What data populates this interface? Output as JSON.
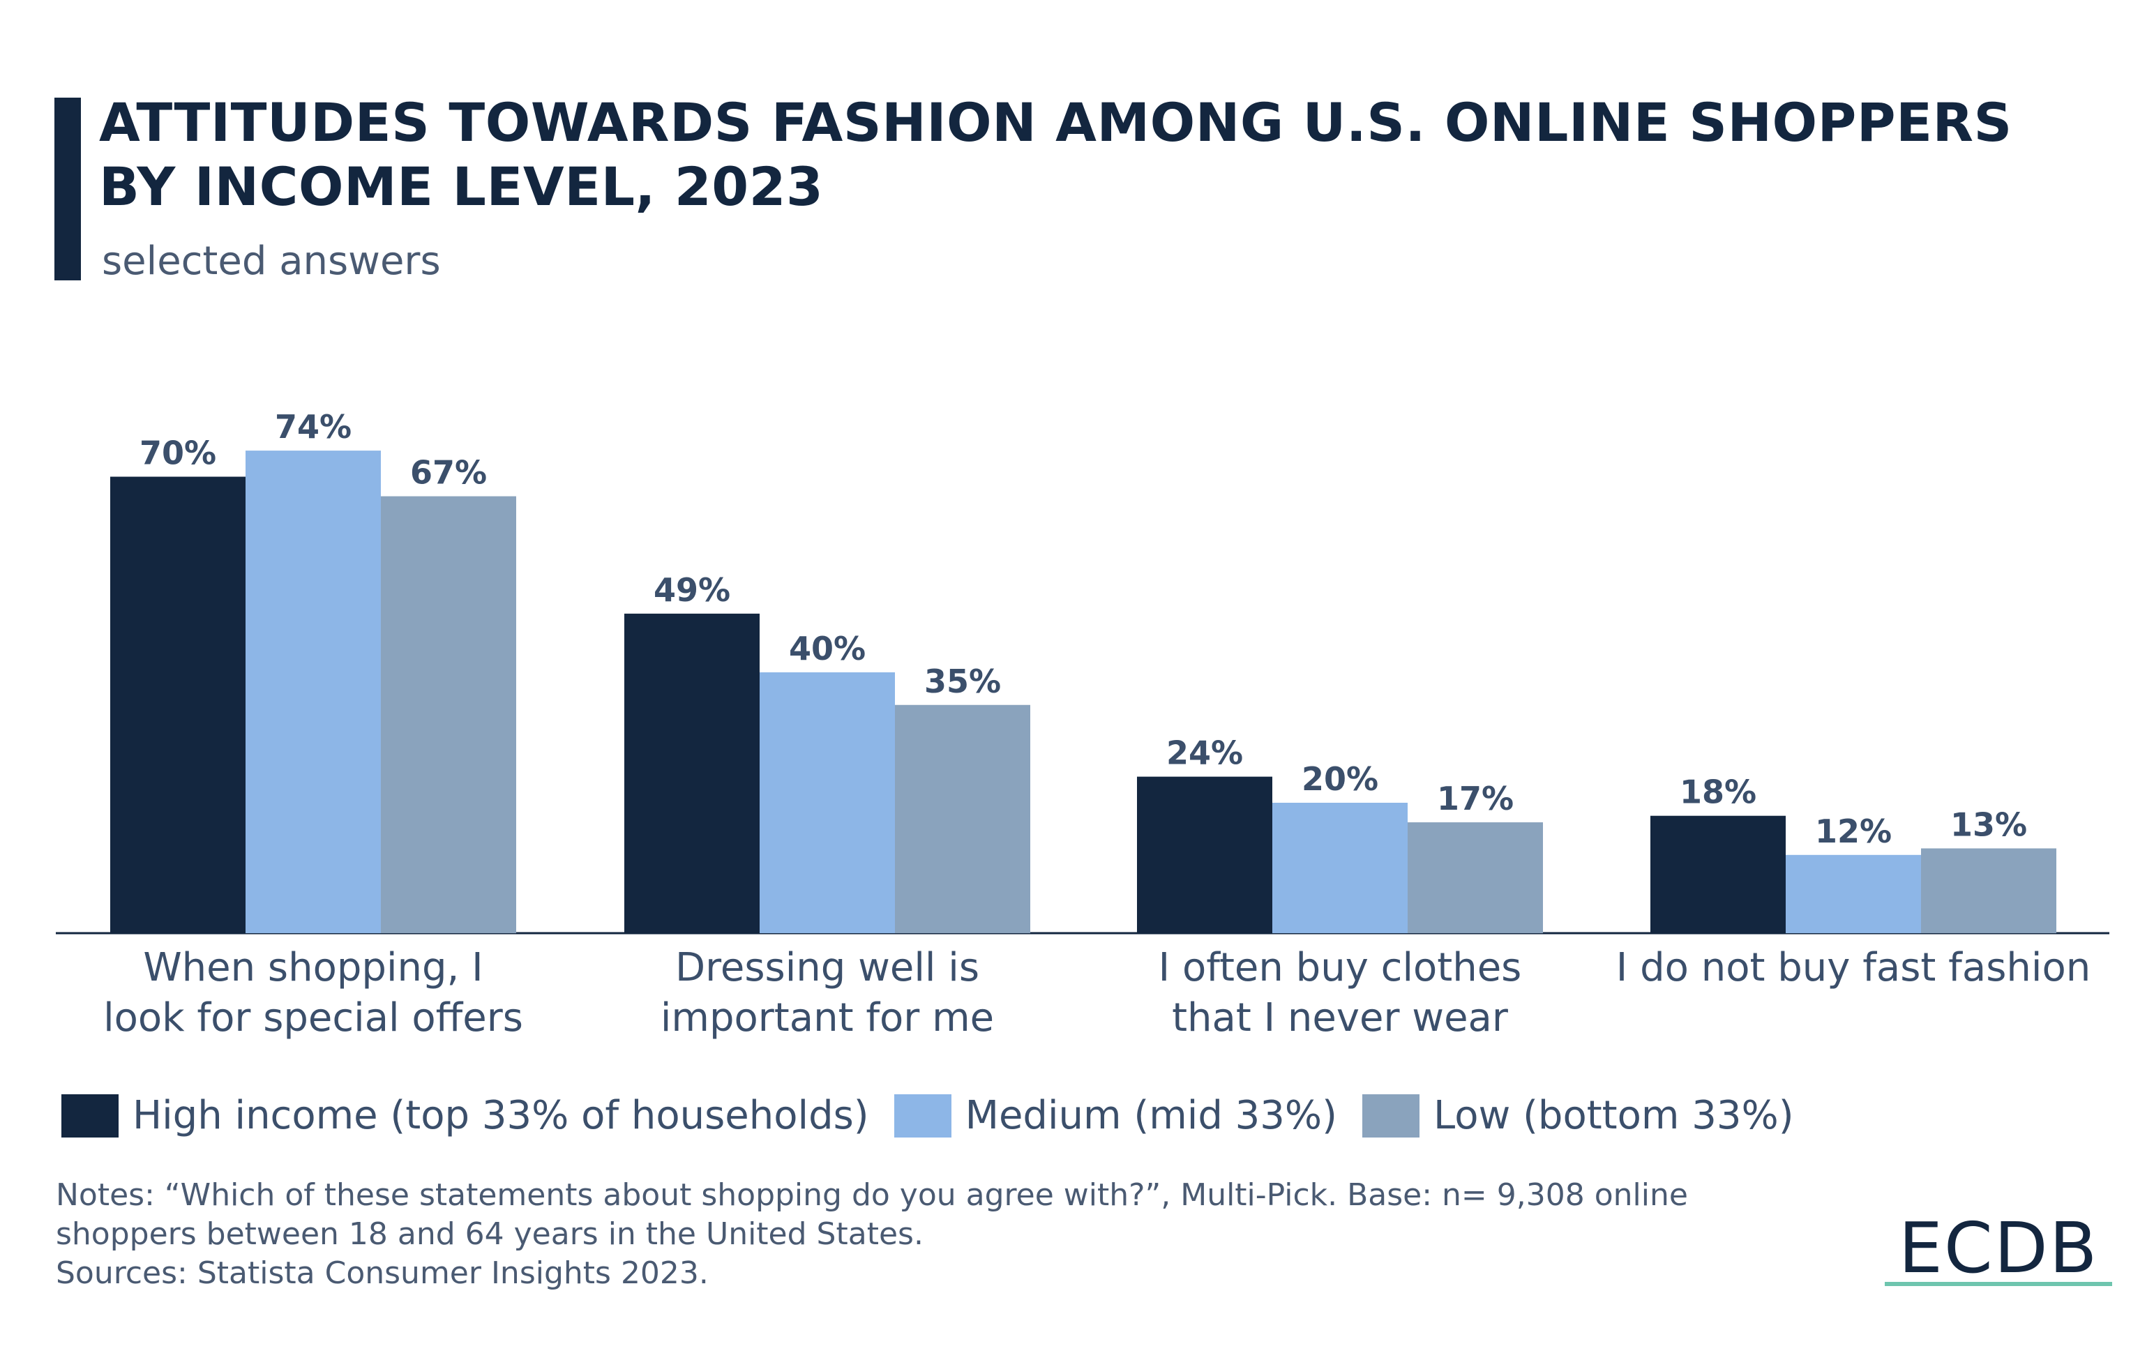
{
  "header": {
    "title_line1": "ATTITUDES TOWARDS FASHION AMONG U.S. ONLINE SHOPPERS",
    "title_line2": "BY INCOME LEVEL, 2023",
    "subtitle": "selected answers"
  },
  "chart_data": {
    "type": "bar",
    "title": "ATTITUDES TOWARDS FASHION AMONG U.S. ONLINE SHOPPERS BY INCOME LEVEL, 2023",
    "subtitle": "selected answers",
    "categories": [
      "When shopping, I\nlook for special offers",
      "Dressing well is\nimportant for me",
      "I often buy clothes\nthat I never wear",
      "I do not buy fast fashion"
    ],
    "series": [
      {
        "name": "High income (top 33% of households)",
        "color": "#13263f",
        "values": [
          70,
          49,
          24,
          18
        ],
        "labels": [
          "70%",
          "49%",
          "24%",
          "18%"
        ]
      },
      {
        "name": "Medium (mid 33%)",
        "color": "#8db6e7",
        "values": [
          74,
          40,
          20,
          12
        ],
        "labels": [
          "74%",
          "40%",
          "20%",
          "12%"
        ]
      },
      {
        "name": "Low (bottom 33%)",
        "color": "#8aa3bd",
        "values": [
          67,
          35,
          17,
          13
        ],
        "labels": [
          "67%",
          "35%",
          "17%",
          "13%"
        ]
      }
    ],
    "unit": "%",
    "ylim": [
      0,
      100
    ],
    "grid": false,
    "legend_position": "bottom-left"
  },
  "legend": {
    "items": [
      {
        "label": "High income (top 33% of households)",
        "color": "#13263f"
      },
      {
        "label": "Medium (mid 33%)",
        "color": "#8db6e7"
      },
      {
        "label": "Low (bottom 33%)",
        "color": "#8aa3bd"
      }
    ]
  },
  "notes": {
    "line1": "Notes: “Which of these statements about shopping do you agree with?”, Multi-Pick. Base: n= 9,308 online",
    "line2": "shoppers between 18 and 64 years in the United States.",
    "line3": "Sources: Statista Consumer Insights 2023."
  },
  "brand": {
    "logo_text": "ECDB",
    "accent_color": "#6ec5ae"
  }
}
